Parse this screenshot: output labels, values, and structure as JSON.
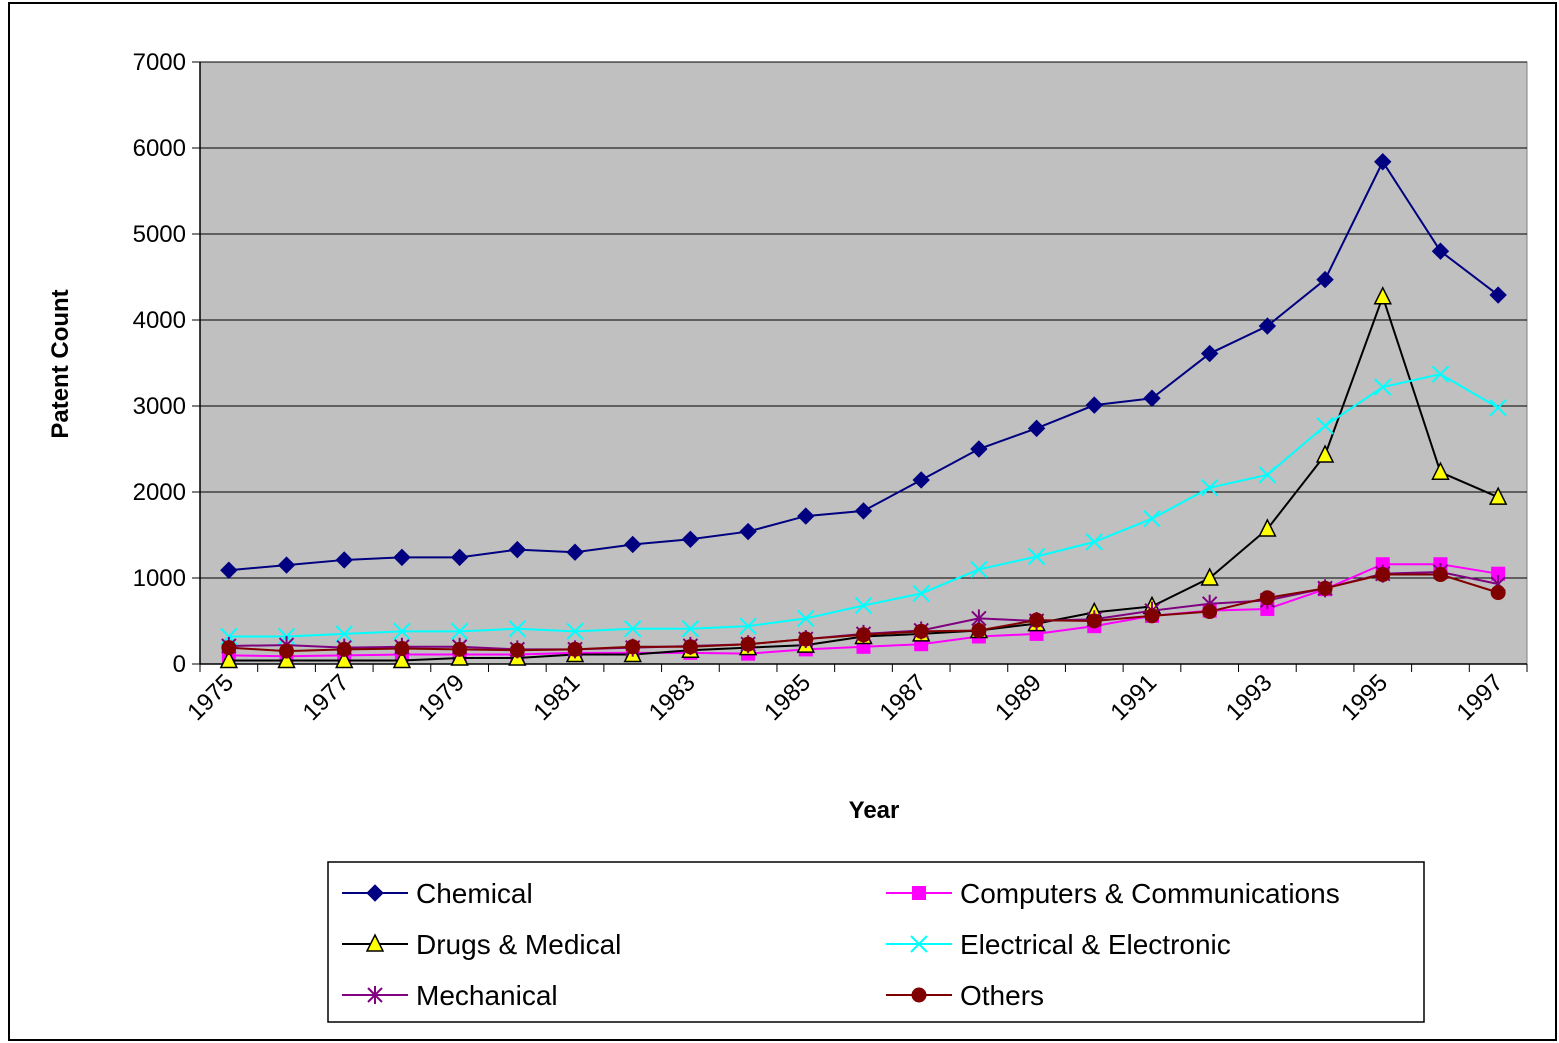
{
  "chart_data": {
    "type": "line",
    "title": "",
    "xlabel": "Year",
    "ylabel": "Patent Count",
    "ylim": [
      0,
      7000
    ],
    "yticks": [
      "0",
      "1000",
      "2000",
      "3000",
      "4000",
      "5000",
      "6000",
      "7000"
    ],
    "xticks": [
      "1975",
      "1977",
      "1979",
      "1981",
      "1983",
      "1985",
      "1987",
      "1989",
      "1991",
      "1993",
      "1995",
      "1997"
    ],
    "x": [
      1975,
      1976,
      1977,
      1978,
      1979,
      1980,
      1981,
      1982,
      1983,
      1984,
      1985,
      1986,
      1987,
      1988,
      1989,
      1990,
      1991,
      1992,
      1993,
      1994,
      1995,
      1996,
      1997
    ],
    "grid": "horizontal",
    "legend_position": "bottom",
    "series": [
      {
        "name": "Chemical",
        "color": "#000080",
        "marker": "diamond",
        "values": [
          1090,
          1150,
          1210,
          1240,
          1240,
          1330,
          1300,
          1390,
          1450,
          1540,
          1720,
          1780,
          2140,
          2500,
          2740,
          3010,
          3090,
          3610,
          3930,
          4470,
          5840,
          4800,
          4290
        ]
      },
      {
        "name": "Computers & Communications",
        "color": "#FF00FF",
        "marker": "square",
        "values": [
          100,
          90,
          100,
          110,
          110,
          110,
          130,
          130,
          130,
          120,
          170,
          200,
          230,
          320,
          350,
          440,
          560,
          620,
          640,
          870,
          1160,
          1160,
          1050
        ]
      },
      {
        "name": "Drugs & Medical",
        "color": "#000000",
        "marker": "triangle",
        "values": [
          40,
          40,
          40,
          40,
          70,
          70,
          110,
          110,
          160,
          190,
          220,
          320,
          350,
          390,
          470,
          600,
          670,
          1000,
          1570,
          2430,
          4270,
          2230,
          1940
        ]
      },
      {
        "name": "Electrical & Electronic",
        "color": "#00FFFF",
        "marker": "x",
        "values": [
          320,
          320,
          350,
          380,
          380,
          410,
          380,
          410,
          410,
          440,
          530,
          680,
          820,
          1100,
          1250,
          1420,
          1690,
          2050,
          2200,
          2770,
          3220,
          3370,
          2980
        ]
      },
      {
        "name": "Mechanical",
        "color": "#800080",
        "marker": "star",
        "values": [
          210,
          220,
          190,
          200,
          200,
          170,
          170,
          190,
          210,
          230,
          290,
          350,
          390,
          530,
          500,
          520,
          620,
          700,
          740,
          880,
          1050,
          1070,
          930
        ]
      },
      {
        "name": "Others",
        "color": "#800000",
        "marker": "circle",
        "values": [
          190,
          150,
          170,
          180,
          170,
          160,
          170,
          200,
          200,
          230,
          290,
          340,
          380,
          390,
          510,
          500,
          560,
          610,
          770,
          880,
          1040,
          1040,
          830
        ]
      }
    ]
  }
}
